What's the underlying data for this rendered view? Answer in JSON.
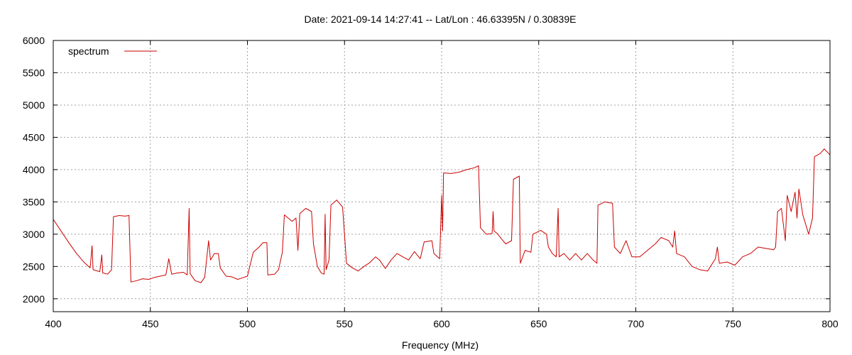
{
  "chart_data": {
    "type": "line",
    "title": "Date: 2021-09-14 14:27:41  --  Lat/Lon : 46.63395N / 0.30839E",
    "xlabel": "Frequency (MHz)",
    "ylabel": "",
    "xlim": [
      400,
      800
    ],
    "ylim": [
      1800,
      6000
    ],
    "xticks": [
      400,
      450,
      500,
      550,
      600,
      650,
      700,
      750,
      800
    ],
    "yticks": [
      2000,
      2500,
      3000,
      3500,
      4000,
      4500,
      5000,
      5500,
      6000
    ],
    "grid": true,
    "legend_position": "top-left",
    "series": [
      {
        "name": "spectrum",
        "color": "#cc0000",
        "points": [
          [
            400,
            3230
          ],
          [
            404,
            3050
          ],
          [
            408,
            2870
          ],
          [
            412,
            2700
          ],
          [
            416,
            2560
          ],
          [
            419,
            2480
          ],
          [
            420,
            2820
          ],
          [
            420.5,
            2450
          ],
          [
            424,
            2420
          ],
          [
            425,
            2680
          ],
          [
            425.5,
            2400
          ],
          [
            428,
            2380
          ],
          [
            430,
            2450
          ],
          [
            431,
            3270
          ],
          [
            434,
            3290
          ],
          [
            437,
            3280
          ],
          [
            439,
            3290
          ],
          [
            440,
            2260
          ],
          [
            443,
            2280
          ],
          [
            446,
            2310
          ],
          [
            449,
            2300
          ],
          [
            452,
            2330
          ],
          [
            455,
            2350
          ],
          [
            458,
            2370
          ],
          [
            459.5,
            2620
          ],
          [
            461,
            2380
          ],
          [
            464,
            2400
          ],
          [
            467,
            2410
          ],
          [
            469,
            2370
          ],
          [
            470,
            3400
          ],
          [
            470.5,
            2390
          ],
          [
            473,
            2280
          ],
          [
            476,
            2250
          ],
          [
            478,
            2330
          ],
          [
            480,
            2900
          ],
          [
            481,
            2600
          ],
          [
            483,
            2700
          ],
          [
            485,
            2700
          ],
          [
            486,
            2480
          ],
          [
            489,
            2350
          ],
          [
            492,
            2340
          ],
          [
            495,
            2300
          ],
          [
            498,
            2330
          ],
          [
            500,
            2350
          ],
          [
            503,
            2720
          ],
          [
            506,
            2800
          ],
          [
            508,
            2870
          ],
          [
            510,
            2870
          ],
          [
            510.5,
            2370
          ],
          [
            514,
            2380
          ],
          [
            516,
            2450
          ],
          [
            518,
            2720
          ],
          [
            519,
            3300
          ],
          [
            521,
            3250
          ],
          [
            523,
            3200
          ],
          [
            525,
            3250
          ],
          [
            526,
            2750
          ],
          [
            527,
            3320
          ],
          [
            530,
            3400
          ],
          [
            533,
            3350
          ],
          [
            534,
            2850
          ],
          [
            536,
            2500
          ],
          [
            538,
            2400
          ],
          [
            539.5,
            2380
          ],
          [
            540,
            3310
          ],
          [
            540.5,
            2450
          ],
          [
            542,
            2600
          ],
          [
            543,
            3450
          ],
          [
            546,
            3530
          ],
          [
            549,
            3420
          ],
          [
            550.5,
            2780
          ],
          [
            551,
            2550
          ],
          [
            554,
            2480
          ],
          [
            557,
            2430
          ],
          [
            560,
            2500
          ],
          [
            563,
            2560
          ],
          [
            566,
            2650
          ],
          [
            568,
            2600
          ],
          [
            571,
            2470
          ],
          [
            574,
            2600
          ],
          [
            577,
            2700
          ],
          [
            580,
            2650
          ],
          [
            583,
            2600
          ],
          [
            586,
            2730
          ],
          [
            589,
            2620
          ],
          [
            591,
            2880
          ],
          [
            595,
            2900
          ],
          [
            596,
            2700
          ],
          [
            599,
            2620
          ],
          [
            600,
            3600
          ],
          [
            600.5,
            3050
          ],
          [
            601,
            3950
          ],
          [
            605,
            3940
          ],
          [
            609,
            3960
          ],
          [
            613,
            4000
          ],
          [
            617,
            4030
          ],
          [
            619,
            4060
          ],
          [
            620,
            3100
          ],
          [
            623,
            3000
          ],
          [
            626,
            3010
          ],
          [
            626.5,
            3350
          ],
          [
            627,
            3050
          ],
          [
            629,
            3000
          ],
          [
            631,
            2920
          ],
          [
            633,
            2850
          ],
          [
            636,
            2900
          ],
          [
            637,
            3850
          ],
          [
            640,
            3900
          ],
          [
            640.5,
            2550
          ],
          [
            643,
            2750
          ],
          [
            646,
            2720
          ],
          [
            647,
            3000
          ],
          [
            651,
            3060
          ],
          [
            654,
            3000
          ],
          [
            655,
            2800
          ],
          [
            657,
            2700
          ],
          [
            659,
            2650
          ],
          [
            660,
            3400
          ],
          [
            660.5,
            2650
          ],
          [
            663,
            2700
          ],
          [
            666,
            2600
          ],
          [
            669,
            2700
          ],
          [
            672,
            2600
          ],
          [
            675,
            2700
          ],
          [
            678,
            2600
          ],
          [
            680,
            2550
          ],
          [
            680.5,
            3450
          ],
          [
            684,
            3500
          ],
          [
            688,
            3480
          ],
          [
            689,
            2800
          ],
          [
            692,
            2700
          ],
          [
            695,
            2900
          ],
          [
            698,
            2650
          ],
          [
            702,
            2650
          ],
          [
            706,
            2750
          ],
          [
            710,
            2850
          ],
          [
            713,
            2950
          ],
          [
            717,
            2900
          ],
          [
            719,
            2800
          ],
          [
            720,
            3050
          ],
          [
            721,
            2700
          ],
          [
            725,
            2650
          ],
          [
            729,
            2500
          ],
          [
            733,
            2450
          ],
          [
            737,
            2430
          ],
          [
            741,
            2620
          ],
          [
            742,
            2800
          ],
          [
            743,
            2550
          ],
          [
            747,
            2570
          ],
          [
            751,
            2520
          ],
          [
            755,
            2650
          ],
          [
            759,
            2700
          ],
          [
            763,
            2800
          ],
          [
            767,
            2780
          ],
          [
            771,
            2760
          ],
          [
            772,
            2800
          ],
          [
            773,
            3350
          ],
          [
            775,
            3400
          ],
          [
            777,
            2900
          ],
          [
            778,
            3600
          ],
          [
            780,
            3350
          ],
          [
            782,
            3650
          ],
          [
            783,
            3250
          ],
          [
            784,
            3700
          ],
          [
            786,
            3300
          ],
          [
            788,
            3100
          ],
          [
            789,
            3000
          ],
          [
            791,
            3250
          ],
          [
            792,
            4200
          ],
          [
            795,
            4250
          ],
          [
            797,
            4320
          ],
          [
            800,
            4230
          ]
        ]
      }
    ]
  }
}
